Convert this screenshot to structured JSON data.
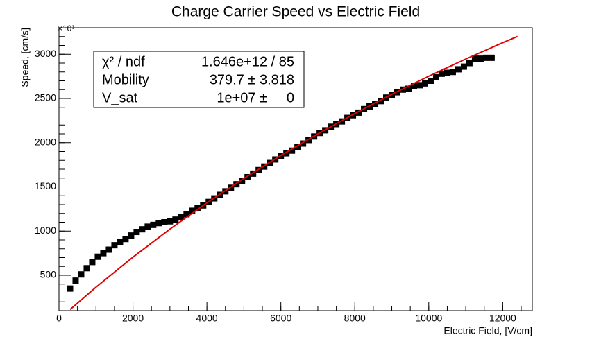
{
  "chart_data": {
    "type": "scatter",
    "title": "Charge Carrier Speed vs Electric Field",
    "xlabel": "Electric Field, [V/cm]",
    "ylabel": "Speed, [cm/s]",
    "y_multiplier": "×10³",
    "xlim": [
      0,
      12800
    ],
    "ylim": [
      100,
      3300
    ],
    "xticks": [
      0,
      2000,
      4000,
      6000,
      8000,
      10000,
      12000
    ],
    "yticks": [
      500,
      1000,
      1500,
      2000,
      2500,
      3000
    ],
    "series": [
      {
        "color": "#000000",
        "marker": "square",
        "x": [
          300,
          450,
          600,
          750,
          900,
          1050,
          1200,
          1350,
          1500,
          1650,
          1800,
          1950,
          2100,
          2250,
          2400,
          2550,
          2700,
          2850,
          3000,
          3150,
          3300,
          3450,
          3600,
          3750,
          3900,
          4050,
          4200,
          4350,
          4500,
          4650,
          4800,
          4950,
          5100,
          5250,
          5400,
          5550,
          5700,
          5850,
          6000,
          6150,
          6300,
          6450,
          6600,
          6750,
          6900,
          7050,
          7200,
          7350,
          7500,
          7650,
          7800,
          7950,
          8100,
          8250,
          8400,
          8550,
          8700,
          8850,
          9000,
          9150,
          9300,
          9450,
          9600,
          9750,
          9900,
          10050,
          10200,
          10350,
          10500,
          10650,
          10800,
          10950,
          11100,
          11250,
          11400,
          11550,
          11700
        ],
        "values": [
          350,
          440,
          510,
          580,
          650,
          710,
          750,
          790,
          840,
          880,
          910,
          950,
          990,
          1020,
          1050,
          1070,
          1090,
          1100,
          1110,
          1130,
          1160,
          1190,
          1230,
          1260,
          1290,
          1330,
          1370,
          1410,
          1450,
          1490,
          1530,
          1570,
          1610,
          1650,
          1690,
          1730,
          1770,
          1810,
          1850,
          1880,
          1910,
          1950,
          1990,
          2030,
          2070,
          2110,
          2140,
          2180,
          2210,
          2240,
          2280,
          2310,
          2340,
          2380,
          2410,
          2440,
          2470,
          2510,
          2540,
          2570,
          2600,
          2610,
          2640,
          2650,
          2670,
          2700,
          2740,
          2780,
          2790,
          2800,
          2830,
          2860,
          2900,
          2950,
          2950,
          2960,
          2960
        ]
      },
      {
        "color": "#e00000",
        "marker": "line",
        "x": [
          300,
          1000,
          2000,
          3000,
          4000,
          5000,
          6000,
          7000,
          8000,
          9000,
          10000,
          11000,
          12000,
          12400
        ],
        "values": [
          112.6,
          365.8,
          705.8,
          1022.6,
          1318.5,
          1595.6,
          1855.5,
          2099.8,
          2329.9,
          2546.9,
          2752.0,
          2946.2,
          3130.2,
          3201.2
        ]
      }
    ],
    "stats": [
      {
        "label": "χ² / ndf",
        "value": "1.646e+12 / 85"
      },
      {
        "label": "Mobility",
        "value": "379.7 ± 3.818"
      },
      {
        "label": "V_sat",
        "value": "1e+07 ±     0"
      }
    ]
  }
}
